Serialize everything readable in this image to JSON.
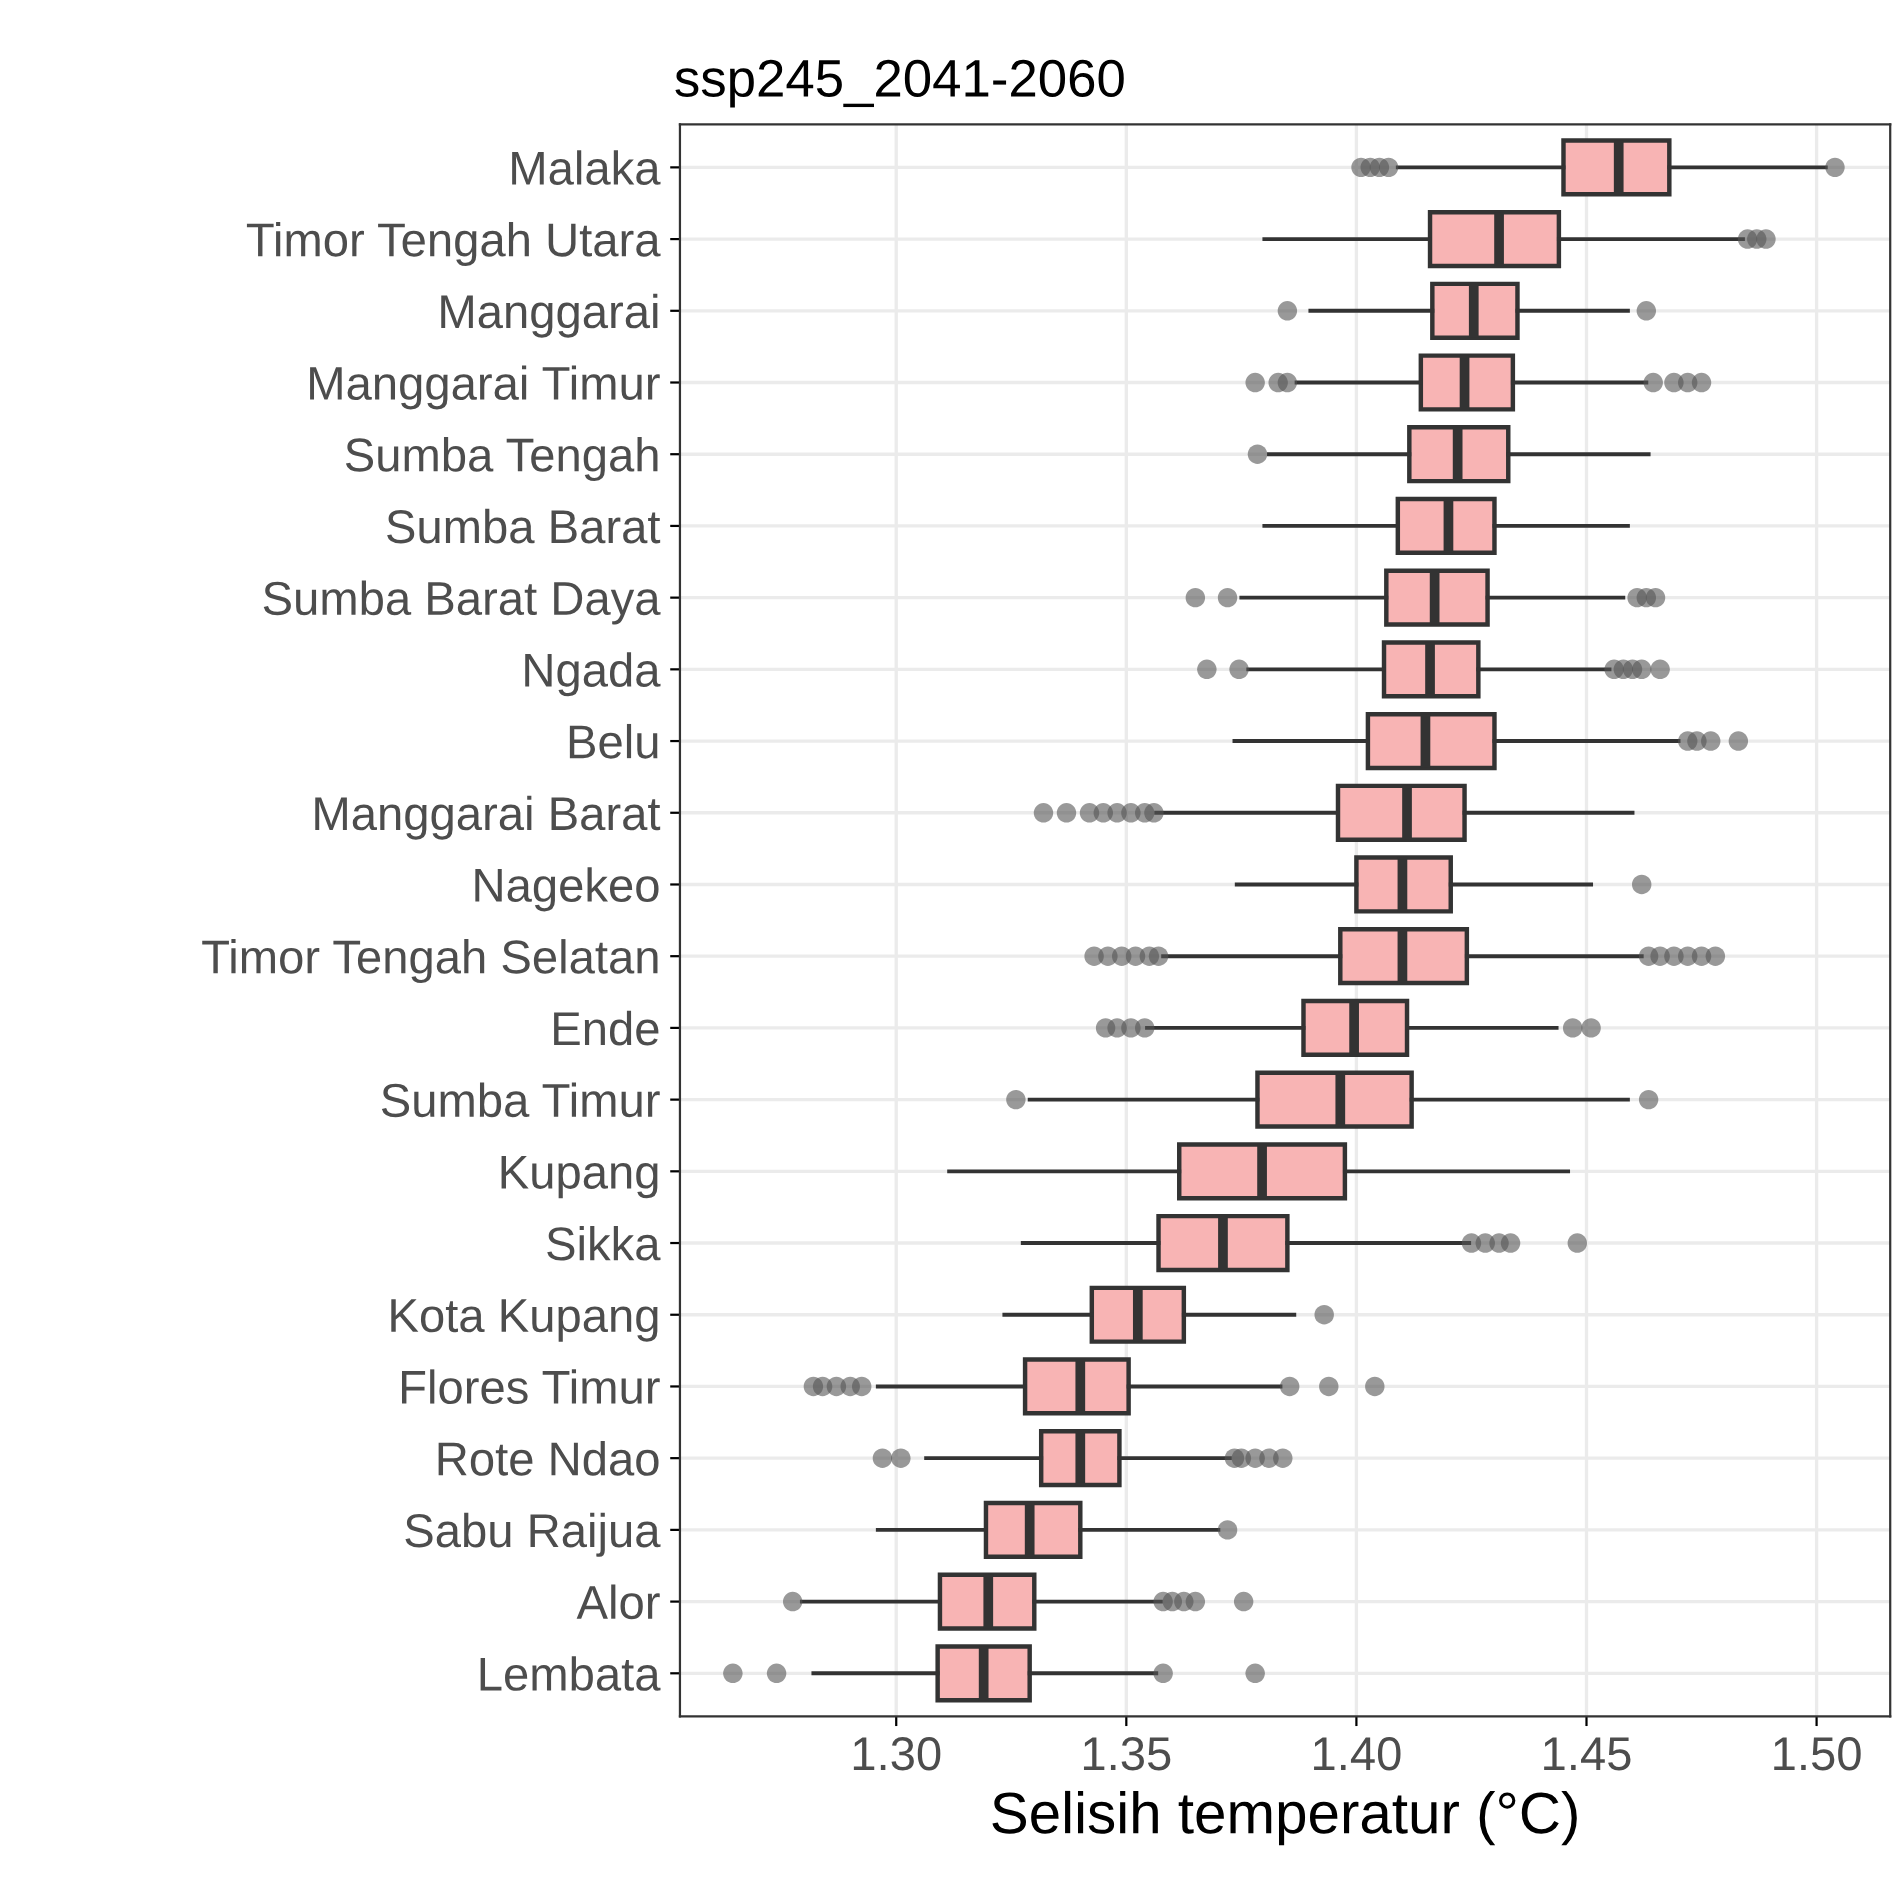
{
  "chart_data": {
    "type": "box",
    "orientation": "horizontal",
    "title": "ssp245_2041-2060",
    "xlabel": "Selisih temperatur (°C)",
    "categories": [
      "Malaka",
      "Timor Tengah Utara",
      "Manggarai",
      "Manggarai Timur",
      "Sumba Tengah",
      "Sumba Barat",
      "Sumba Barat Daya",
      "Ngada",
      "Belu",
      "Manggarai Barat",
      "Nagekeo",
      "Timor Tengah Selatan",
      "Ende",
      "Sumba Timur",
      "Kupang",
      "Sikka",
      "Kota Kupang",
      "Flores Timur",
      "Rote Ndao",
      "Sabu Raijua",
      "Alor",
      "Lembata"
    ],
    "color": "#f8b4b4",
    "boxes": [
      {
        "low": 1.409,
        "q1": 1.445,
        "median": 1.457,
        "q3": 1.468,
        "high": 1.502,
        "outliers": [
          1.401,
          1.403,
          1.405,
          1.407,
          1.504
        ]
      },
      {
        "low": 1.38,
        "q1": 1.416,
        "median": 1.431,
        "q3": 1.444,
        "high": 1.484,
        "outliers": [
          1.485,
          1.487,
          1.489
        ]
      },
      {
        "low": 1.39,
        "q1": 1.4165,
        "median": 1.4255,
        "q3": 1.435,
        "high": 1.459,
        "outliers": [
          1.385,
          1.463
        ]
      },
      {
        "low": 1.387,
        "q1": 1.414,
        "median": 1.4235,
        "q3": 1.434,
        "high": 1.463,
        "outliers": [
          1.378,
          1.383,
          1.385,
          1.4645,
          1.469,
          1.472,
          1.475
        ]
      },
      {
        "low": 1.381,
        "q1": 1.4115,
        "median": 1.422,
        "q3": 1.433,
        "high": 1.4635,
        "outliers": [
          1.3785
        ]
      },
      {
        "low": 1.38,
        "q1": 1.409,
        "median": 1.42,
        "q3": 1.43,
        "high": 1.459
      },
      {
        "low": 1.375,
        "q1": 1.4065,
        "median": 1.417,
        "q3": 1.4285,
        "high": 1.458,
        "outliers": [
          1.365,
          1.372,
          1.461,
          1.463,
          1.465
        ]
      },
      {
        "low": 1.3765,
        "q1": 1.406,
        "median": 1.416,
        "q3": 1.4265,
        "high": 1.455,
        "outliers": [
          1.3675,
          1.3745,
          1.456,
          1.458,
          1.46,
          1.462,
          1.466
        ]
      },
      {
        "low": 1.3735,
        "q1": 1.4025,
        "median": 1.415,
        "q3": 1.43,
        "high": 1.47,
        "outliers": [
          1.472,
          1.474,
          1.477,
          1.483
        ]
      },
      {
        "low": 1.3565,
        "q1": 1.396,
        "median": 1.411,
        "q3": 1.4235,
        "high": 1.46,
        "outliers": [
          1.332,
          1.337,
          1.342,
          1.345,
          1.348,
          1.351,
          1.354,
          1.356
        ]
      },
      {
        "low": 1.374,
        "q1": 1.4,
        "median": 1.41,
        "q3": 1.4205,
        "high": 1.451,
        "outliers": [
          1.462
        ]
      },
      {
        "low": 1.358,
        "q1": 1.3965,
        "median": 1.41,
        "q3": 1.424,
        "high": 1.462,
        "outliers": [
          1.343,
          1.346,
          1.349,
          1.352,
          1.355,
          1.357,
          1.4635,
          1.466,
          1.469,
          1.472,
          1.475,
          1.478
        ]
      },
      {
        "low": 1.3545,
        "q1": 1.3885,
        "median": 1.3995,
        "q3": 1.411,
        "high": 1.4435,
        "outliers": [
          1.3455,
          1.348,
          1.351,
          1.354,
          1.447,
          1.451
        ]
      },
      {
        "low": 1.329,
        "q1": 1.3785,
        "median": 1.3965,
        "q3": 1.412,
        "high": 1.459,
        "outliers": [
          1.326,
          1.4635
        ]
      },
      {
        "low": 1.3115,
        "q1": 1.3615,
        "median": 1.3795,
        "q3": 1.3975,
        "high": 1.446
      },
      {
        "low": 1.3275,
        "q1": 1.357,
        "median": 1.371,
        "q3": 1.385,
        "high": 1.4245,
        "outliers": [
          1.425,
          1.428,
          1.431,
          1.4335,
          1.448
        ]
      },
      {
        "low": 1.3235,
        "q1": 1.3425,
        "median": 1.3525,
        "q3": 1.3625,
        "high": 1.3865,
        "outliers": [
          1.393
        ]
      },
      {
        "low": 1.296,
        "q1": 1.328,
        "median": 1.34,
        "q3": 1.3505,
        "high": 1.3835,
        "outliers": [
          1.282,
          1.284,
          1.287,
          1.29,
          1.2925,
          1.3855,
          1.394,
          1.404
        ]
      },
      {
        "low": 1.3065,
        "q1": 1.3315,
        "median": 1.34,
        "q3": 1.3485,
        "high": 1.3725,
        "outliers": [
          1.297,
          1.301,
          1.3735,
          1.375,
          1.378,
          1.381,
          1.384
        ]
      },
      {
        "low": 1.296,
        "q1": 1.3195,
        "median": 1.329,
        "q3": 1.34,
        "high": 1.37,
        "outliers": [
          1.372
        ]
      },
      {
        "low": 1.2795,
        "q1": 1.3095,
        "median": 1.32,
        "q3": 1.33,
        "high": 1.3575,
        "outliers": [
          1.2775,
          1.358,
          1.36,
          1.3625,
          1.365,
          1.3755
        ]
      },
      {
        "low": 1.282,
        "q1": 1.309,
        "median": 1.319,
        "q3": 1.329,
        "high": 1.3565,
        "outliers": [
          1.2645,
          1.274,
          1.358,
          1.378
        ]
      }
    ],
    "xlim": [
      1.253,
      1.516
    ],
    "xticks": [
      {
        "value": 1.3,
        "label": "1.30"
      },
      {
        "value": 1.35,
        "label": "1.35"
      },
      {
        "value": 1.4,
        "label": "1.40"
      },
      {
        "value": 1.45,
        "label": "1.45"
      },
      {
        "value": 1.5,
        "label": "1.50"
      }
    ],
    "grid": true
  }
}
